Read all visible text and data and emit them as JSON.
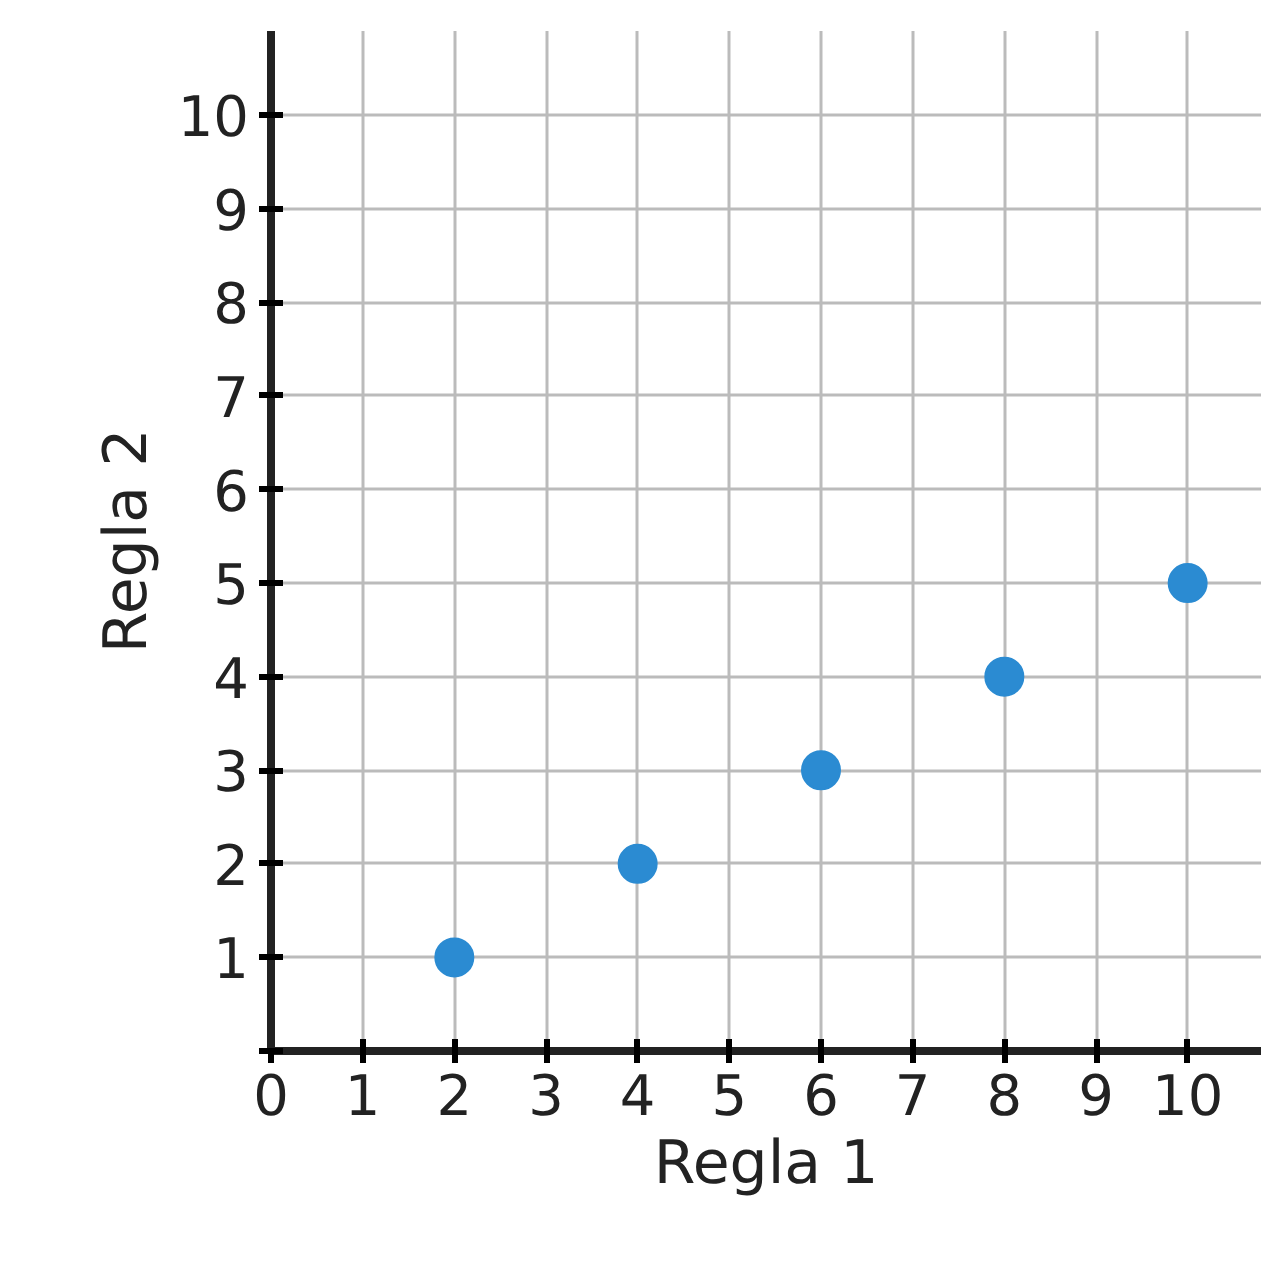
{
  "chart_data": {
    "type": "scatter",
    "xlabel": "Regla 1",
    "ylabel": "Regla 2",
    "x": [
      2,
      4,
      6,
      8,
      10
    ],
    "values": [
      1,
      2,
      3,
      4,
      5
    ],
    "color": "#2b8bd2",
    "marker": "circle",
    "xlim": [
      0,
      10.8
    ],
    "ylim": [
      0,
      10.9
    ],
    "xticks": [
      0,
      1,
      2,
      3,
      4,
      5,
      6,
      7,
      8,
      9,
      10
    ],
    "yticks": [
      {
        "value": 0,
        "label": null
      },
      1,
      2,
      3,
      4,
      5,
      6,
      7,
      8,
      9,
      10
    ],
    "grid": true
  }
}
